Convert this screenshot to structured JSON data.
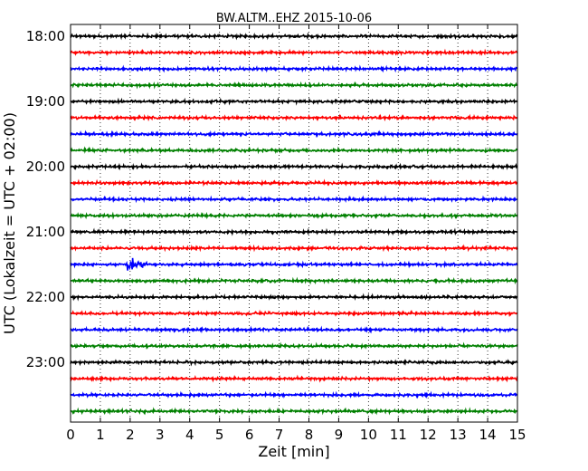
{
  "chart_data": {
    "type": "line",
    "title": "BW.ALTM..EHZ 2015-10-06",
    "xlabel": "Zeit  [min]",
    "ylabel": "UTC (Lokalzeit = UTC + 02:00)",
    "xlim": [
      0,
      15
    ],
    "x_ticks": [
      "0",
      "1",
      "2",
      "3",
      "4",
      "5",
      "6",
      "7",
      "8",
      "9",
      "10",
      "11",
      "12",
      "13",
      "14",
      "15"
    ],
    "y_tick_labels": [
      "18:00",
      "19:00",
      "20:00",
      "21:00",
      "22:00",
      "23:00"
    ],
    "grid": "vertical dotted",
    "trace_colors": [
      "#000000",
      "#ff0000",
      "#0000ff",
      "#008000"
    ],
    "traces": [
      {
        "start": "18:00",
        "color": "#000000",
        "amplitude": 0.12
      },
      {
        "start": "18:15",
        "color": "#ff0000",
        "amplitude": 0.12
      },
      {
        "start": "18:30",
        "color": "#0000ff",
        "amplitude": 0.12
      },
      {
        "start": "18:45",
        "color": "#008000",
        "amplitude": 0.12
      },
      {
        "start": "19:00",
        "color": "#000000",
        "amplitude": 0.12
      },
      {
        "start": "19:15",
        "color": "#ff0000",
        "amplitude": 0.12
      },
      {
        "start": "19:30",
        "color": "#0000ff",
        "amplitude": 0.12
      },
      {
        "start": "19:45",
        "color": "#008000",
        "amplitude": 0.12
      },
      {
        "start": "20:00",
        "color": "#000000",
        "amplitude": 0.12
      },
      {
        "start": "20:15",
        "color": "#ff0000",
        "amplitude": 0.12
      },
      {
        "start": "20:30",
        "color": "#0000ff",
        "amplitude": 0.12
      },
      {
        "start": "20:45",
        "color": "#008000",
        "amplitude": 0.12
      },
      {
        "start": "21:00",
        "color": "#000000",
        "amplitude": 0.12
      },
      {
        "start": "21:15",
        "color": "#ff0000",
        "amplitude": 0.12
      },
      {
        "start": "21:30",
        "color": "#0000ff",
        "amplitude": 0.12,
        "event": {
          "onset_min": 1.85,
          "peak_amplitude": 1.4,
          "decay_min": 1.1
        }
      },
      {
        "start": "21:45",
        "color": "#008000",
        "amplitude": 0.12
      },
      {
        "start": "22:00",
        "color": "#000000",
        "amplitude": 0.12
      },
      {
        "start": "22:15",
        "color": "#ff0000",
        "amplitude": 0.12
      },
      {
        "start": "22:30",
        "color": "#0000ff",
        "amplitude": 0.12
      },
      {
        "start": "22:45",
        "color": "#008000",
        "amplitude": 0.12
      },
      {
        "start": "23:00",
        "color": "#000000",
        "amplitude": 0.12
      },
      {
        "start": "23:15",
        "color": "#ff0000",
        "amplitude": 0.12
      },
      {
        "start": "23:30",
        "color": "#0000ff",
        "amplitude": 0.12
      },
      {
        "start": "23:45",
        "color": "#008000",
        "amplitude": 0.12
      }
    ]
  }
}
